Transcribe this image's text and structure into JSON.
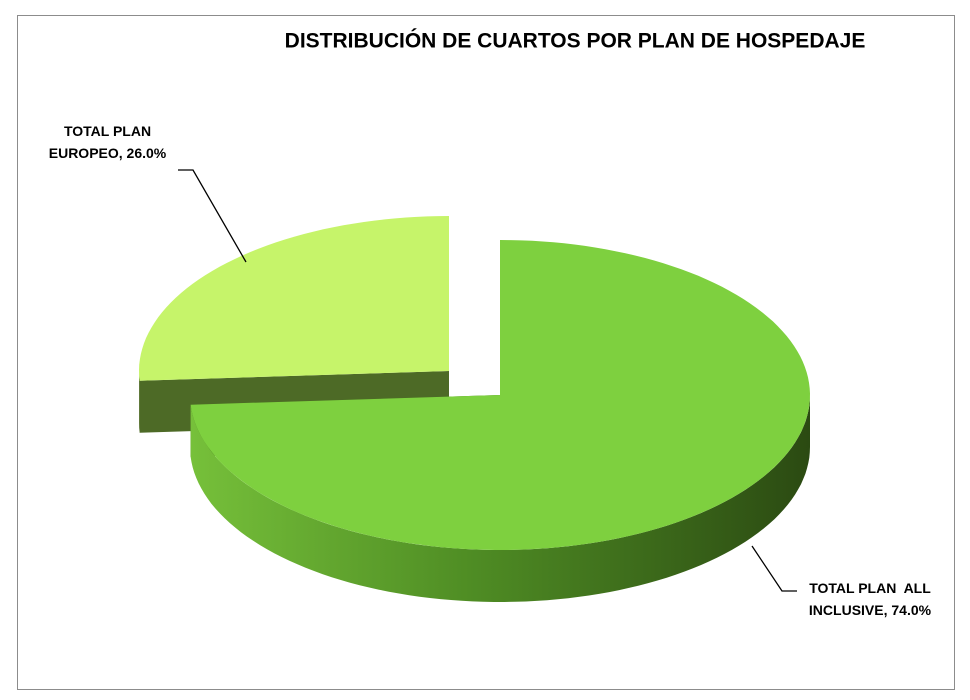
{
  "chart_data": {
    "type": "pie",
    "title": "DISTRIBUCIÓN DE CUARTOS POR PLAN DE HOSPEDAJE",
    "series": [
      {
        "values": [
          74.0,
          26.0
        ],
        "value_labels": [
          "TOTAL PLAN  ALL INCLUSIVE, 74.0%",
          "TOTAL PLAN EUROPEO, 26.0%"
        ],
        "colors": [
          "#7ed03f",
          "#c6f46a"
        ]
      }
    ]
  }
}
